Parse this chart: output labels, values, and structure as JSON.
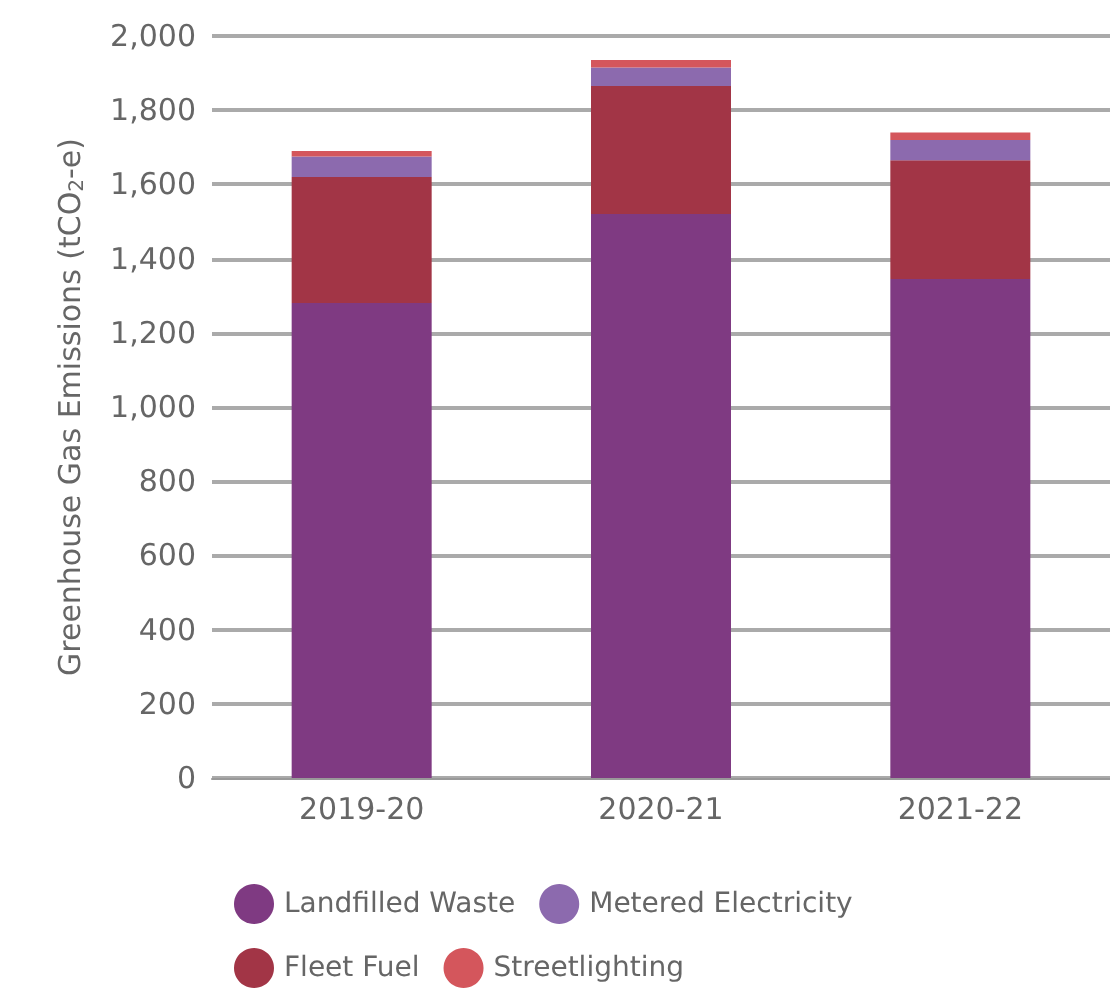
{
  "chart_data": {
    "type": "bar",
    "stacked": true,
    "ylabel": "Greenhouse Gas Emissions (tCO$_{2}$-e)",
    "categories": [
      "2019-20",
      "2020-21",
      "2021-22"
    ],
    "series": [
      {
        "name": "Landfilled Waste",
        "color": "#7f3a82",
        "values": [
          1280,
          1520,
          1345
        ]
      },
      {
        "name": "Fleet Fuel",
        "color": "#a23546",
        "values": [
          340,
          345,
          320
        ]
      },
      {
        "name": "Metered Electricity",
        "color": "#8c6aae",
        "values": [
          55,
          50,
          55
        ]
      },
      {
        "name": "Streetlighting",
        "color": "#d4565c",
        "values": [
          15,
          20,
          20
        ]
      }
    ],
    "ylim": [
      0,
      2000
    ],
    "yticks": [
      0,
      200,
      400,
      600,
      800,
      {
        "value": 1000,
        "label": "1,000"
      },
      {
        "value": 1200,
        "label": "1,200"
      },
      {
        "value": 1400,
        "label": "1,400"
      },
      {
        "value": 1600,
        "label": "1,600"
      },
      {
        "value": 1800,
        "label": "1,800"
      },
      {
        "value": 2000,
        "label": "2,000"
      }
    ],
    "grid": "y",
    "legend": "bottom"
  }
}
